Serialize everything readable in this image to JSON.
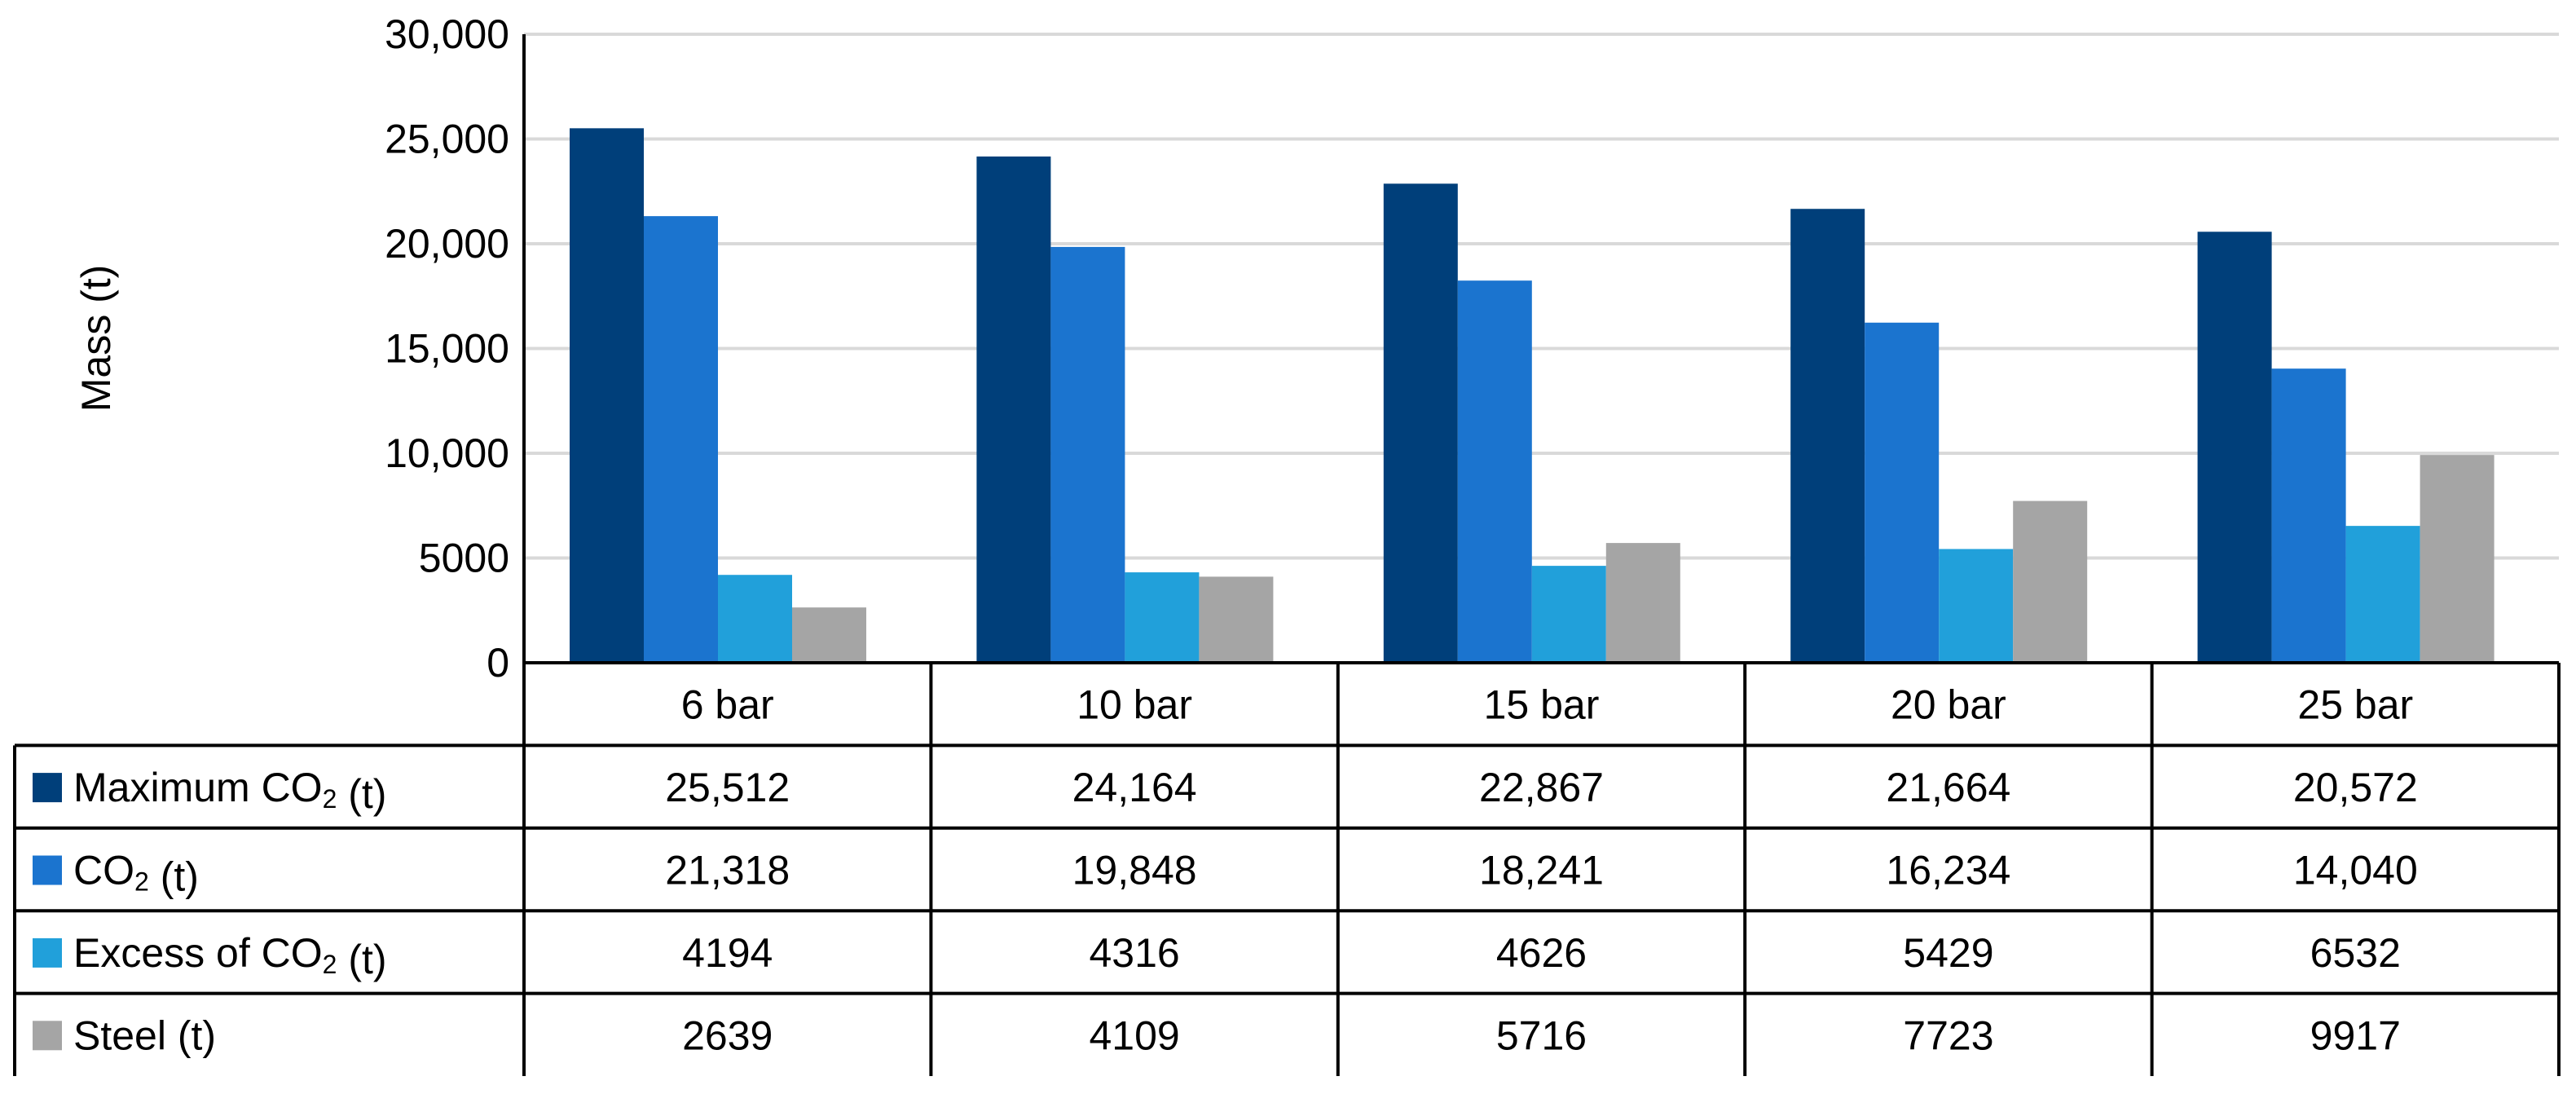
{
  "chart_data": {
    "type": "bar",
    "ylabel": "Mass (t)",
    "ylim": [
      0,
      30000
    ],
    "yticks": [
      0,
      5000,
      10000,
      15000,
      20000,
      25000,
      30000
    ],
    "ytick_labels": [
      "0",
      "5000",
      "10,000",
      "15,000",
      "20,000",
      "25,000",
      "30,000"
    ],
    "grid": true,
    "legend": "data-table",
    "categories": [
      "6 bar",
      "10 bar",
      "15 bar",
      "20 bar",
      "25 bar"
    ],
    "series": [
      {
        "name": "Maximum CO₂ (t)",
        "color": "#003F7A",
        "values": [
          25512,
          24164,
          22867,
          21664,
          20572
        ],
        "labels": [
          "25,512",
          "24,164",
          "22,867",
          "21,664",
          "20,572"
        ]
      },
      {
        "name": "CO₂ (t)",
        "color": "#1B74CF",
        "values": [
          21318,
          19848,
          18241,
          16234,
          14040
        ],
        "labels": [
          "21,318",
          "19,848",
          "18,241",
          "16,234",
          "14,040"
        ]
      },
      {
        "name": "Excess of CO₂ (t)",
        "color": "#21A0DA",
        "values": [
          4194,
          4316,
          4626,
          5429,
          6532
        ],
        "labels": [
          "4194",
          "4316",
          "4626",
          "5429",
          "6532"
        ]
      },
      {
        "name": "Steel (t)",
        "color": "#A5A5A5",
        "values": [
          2639,
          4109,
          5716,
          7723,
          9917
        ],
        "labels": [
          "2639",
          "4109",
          "5716",
          "7723",
          "9917"
        ]
      }
    ]
  }
}
